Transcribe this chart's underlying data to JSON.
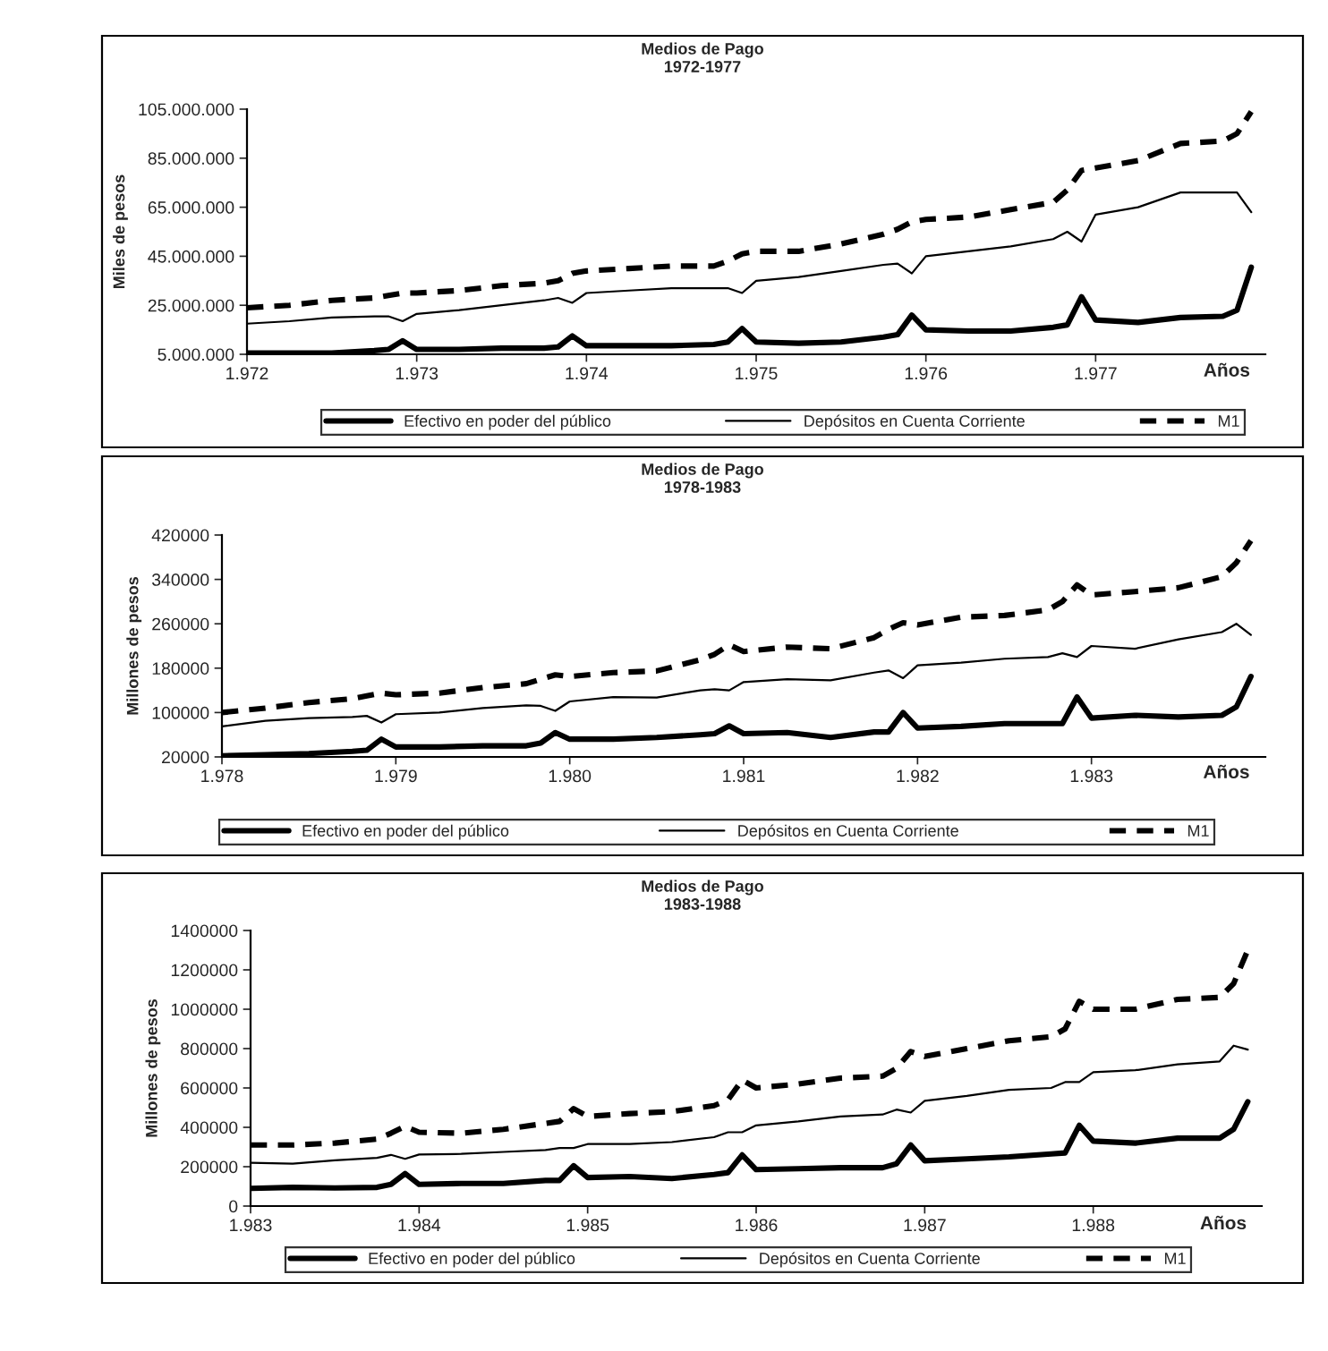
{
  "chart_data": [
    {
      "type": "line",
      "title": "Medios de Pago",
      "subtitle": "1972-1977",
      "xlabel": "Años",
      "ylabel": "Miles de pesos",
      "legend": "bottom",
      "grid": false,
      "x": [
        1972,
        1972.25,
        1972.5,
        1972.75,
        1972.833,
        1972.917,
        1973,
        1973.25,
        1973.5,
        1973.75,
        1973.833,
        1973.917,
        1974,
        1974.25,
        1974.5,
        1974.75,
        1974.833,
        1974.917,
        1975,
        1975.25,
        1975.5,
        1975.75,
        1975.833,
        1975.917,
        1976,
        1976.25,
        1976.5,
        1976.75,
        1976.833,
        1976.917,
        1977,
        1977.25,
        1977.5,
        1977.75,
        1977.833,
        1977.917
      ],
      "xlim": [
        1972,
        1978
      ],
      "xticks": [
        {
          "value": 1972,
          "label": "1.972"
        },
        {
          "value": 1973,
          "label": "1.973"
        },
        {
          "value": 1974,
          "label": "1.974"
        },
        {
          "value": 1975,
          "label": "1.975"
        },
        {
          "value": 1976,
          "label": "1.976"
        },
        {
          "value": 1977,
          "label": "1.977"
        }
      ],
      "ylim": [
        5000000,
        105000000
      ],
      "yticks": [
        {
          "value": 5000000,
          "label": "5.000.000"
        },
        {
          "value": 25000000,
          "label": "25.000.000"
        },
        {
          "value": 45000000,
          "label": "45.000.000"
        },
        {
          "value": 65000000,
          "label": "65.000.000"
        },
        {
          "value": 85000000,
          "label": "85.000.000"
        },
        {
          "value": 105000000,
          "label": "105.000.000"
        }
      ],
      "series": [
        {
          "name": "Efectivo en poder del público",
          "color": "#000000",
          "line_style": "solid",
          "values": [
            5500000,
            5500000,
            5500000,
            6500000,
            7000000,
            10500000,
            7000000,
            7000000,
            7500000,
            7500000,
            8000000,
            12500000,
            8500000,
            8500000,
            8500000,
            9000000,
            10000000,
            15500000,
            10000000,
            9500000,
            10000000,
            12000000,
            13000000,
            21000000,
            15000000,
            14500000,
            14500000,
            16000000,
            17000000,
            28500000,
            19000000,
            18000000,
            20000000,
            20500000,
            23000000,
            40500000
          ]
        },
        {
          "name": "Depósitos en Cuenta Corriente",
          "color": "#000000",
          "line_style": "solid",
          "values": [
            17500000,
            18500000,
            20000000,
            20500000,
            20500000,
            18500000,
            21500000,
            23000000,
            25000000,
            27000000,
            28000000,
            26000000,
            30000000,
            31000000,
            32000000,
            32000000,
            32000000,
            30000000,
            35000000,
            36500000,
            39000000,
            41500000,
            42000000,
            38000000,
            45000000,
            47000000,
            49000000,
            52000000,
            55000000,
            51000000,
            62000000,
            65000000,
            71000000,
            71000000,
            71000000,
            63000000
          ]
        },
        {
          "name": "M1",
          "color": "#000000",
          "line_style": "dashed",
          "values": [
            24000000,
            25000000,
            27000000,
            28000000,
            29000000,
            30000000,
            30000000,
            31000000,
            33000000,
            34000000,
            35000000,
            38000000,
            39000000,
            40000000,
            41000000,
            41000000,
            43000000,
            46000000,
            47000000,
            47000000,
            50000000,
            54000000,
            56000000,
            59000000,
            60000000,
            61000000,
            64000000,
            67000000,
            72000000,
            80000000,
            81000000,
            84000000,
            91000000,
            92000000,
            95000000,
            104000000
          ]
        }
      ]
    },
    {
      "type": "line",
      "title": "Medios de Pago",
      "subtitle": "1978-1983",
      "xlabel": "Años",
      "ylabel": "Millones de pesos",
      "legend": "bottom",
      "grid": false,
      "x": [
        1978,
        1978.25,
        1978.5,
        1978.75,
        1978.833,
        1978.917,
        1979,
        1979.25,
        1979.5,
        1979.75,
        1979.833,
        1979.917,
        1980,
        1980.25,
        1980.5,
        1980.75,
        1980.833,
        1980.917,
        1981,
        1981.25,
        1981.5,
        1981.75,
        1981.833,
        1981.917,
        1982,
        1982.25,
        1982.5,
        1982.75,
        1982.833,
        1982.917,
        1983,
        1983.25,
        1983.5,
        1983.75,
        1983.833,
        1983.917
      ],
      "xlim": [
        1978,
        1984
      ],
      "xticks": [
        {
          "value": 1978,
          "label": "1.978"
        },
        {
          "value": 1979,
          "label": "1.979"
        },
        {
          "value": 1980,
          "label": "1.980"
        },
        {
          "value": 1981,
          "label": "1.981"
        },
        {
          "value": 1982,
          "label": "1.982"
        },
        {
          "value": 1983,
          "label": "1.983"
        }
      ],
      "ylim": [
        20000,
        420000
      ],
      "yticks": [
        20000,
        100000,
        180000,
        260000,
        340000,
        420000
      ],
      "series": [
        {
          "name": "Efectivo en poder del público",
          "color": "#000000",
          "line_style": "solid",
          "values": [
            22000,
            24000,
            26000,
            30000,
            32000,
            52000,
            38000,
            38000,
            40000,
            40000,
            45000,
            64000,
            52000,
            52000,
            55000,
            60000,
            62000,
            76000,
            62000,
            64000,
            55000,
            65000,
            65000,
            100000,
            72000,
            75000,
            80000,
            80000,
            80000,
            128000,
            90000,
            95000,
            92000,
            95000,
            110000,
            165000
          ]
        },
        {
          "name": "Depósitos en Cuenta Corriente",
          "color": "#000000",
          "line_style": "solid",
          "values": [
            75000,
            85000,
            90000,
            92000,
            94000,
            82000,
            97000,
            100000,
            108000,
            113000,
            112000,
            103000,
            120000,
            128000,
            127000,
            140000,
            142000,
            140000,
            155000,
            160000,
            158000,
            172000,
            176000,
            162000,
            185000,
            190000,
            197000,
            200000,
            207000,
            200000,
            220000,
            215000,
            232000,
            245000,
            260000,
            240000
          ]
        },
        {
          "name": "M1",
          "color": "#000000",
          "line_style": "dashed",
          "values": [
            100000,
            108000,
            118000,
            125000,
            130000,
            135000,
            132000,
            135000,
            145000,
            152000,
            160000,
            168000,
            165000,
            172000,
            175000,
            195000,
            205000,
            222000,
            210000,
            218000,
            215000,
            235000,
            250000,
            262000,
            258000,
            272000,
            275000,
            285000,
            300000,
            330000,
            312000,
            318000,
            325000,
            345000,
            370000,
            410000
          ]
        }
      ]
    },
    {
      "type": "line",
      "title": "Medios de Pago",
      "subtitle": "1983-1988",
      "xlabel": "Años",
      "ylabel": "Millones de pesos",
      "legend": "bottom",
      "grid": false,
      "x": [
        1983,
        1983.25,
        1983.5,
        1983.75,
        1983.833,
        1983.917,
        1984,
        1984.25,
        1984.5,
        1984.75,
        1984.833,
        1984.917,
        1985,
        1985.25,
        1985.5,
        1985.75,
        1985.833,
        1985.917,
        1986,
        1986.25,
        1986.5,
        1986.75,
        1986.833,
        1986.917,
        1987,
        1987.25,
        1987.5,
        1987.75,
        1987.833,
        1987.917,
        1988,
        1988.25,
        1988.5,
        1988.75,
        1988.833,
        1988.917
      ],
      "xlim": [
        1983,
        1989
      ],
      "xticks": [
        {
          "value": 1983,
          "label": "1.983"
        },
        {
          "value": 1984,
          "label": "1.984"
        },
        {
          "value": 1985,
          "label": "1.985"
        },
        {
          "value": 1986,
          "label": "1.986"
        },
        {
          "value": 1987,
          "label": "1.987"
        },
        {
          "value": 1988,
          "label": "1.988"
        }
      ],
      "ylim": [
        0,
        1400000
      ],
      "yticks": [
        0,
        200000,
        400000,
        600000,
        800000,
        1000000,
        1200000,
        1400000
      ],
      "series": [
        {
          "name": "Efectivo en poder del público",
          "color": "#000000",
          "line_style": "solid",
          "values": [
            90000,
            95000,
            92000,
            95000,
            110000,
            165000,
            110000,
            115000,
            115000,
            130000,
            130000,
            205000,
            145000,
            150000,
            140000,
            160000,
            170000,
            260000,
            185000,
            190000,
            195000,
            195000,
            215000,
            310000,
            230000,
            240000,
            250000,
            265000,
            270000,
            410000,
            330000,
            320000,
            345000,
            345000,
            390000,
            530000
          ]
        },
        {
          "name": "Depósitos en Cuenta Corriente",
          "color": "#000000",
          "line_style": "solid",
          "values": [
            220000,
            215000,
            232000,
            245000,
            260000,
            240000,
            262000,
            265000,
            275000,
            285000,
            295000,
            295000,
            315000,
            315000,
            325000,
            350000,
            375000,
            375000,
            410000,
            430000,
            455000,
            465000,
            490000,
            475000,
            535000,
            560000,
            590000,
            600000,
            630000,
            630000,
            680000,
            690000,
            720000,
            735000,
            815000,
            795000
          ]
        },
        {
          "name": "M1",
          "color": "#000000",
          "line_style": "dashed",
          "values": [
            310000,
            310000,
            320000,
            340000,
            370000,
            405000,
            375000,
            370000,
            390000,
            420000,
            430000,
            495000,
            455000,
            470000,
            480000,
            510000,
            540000,
            640000,
            600000,
            620000,
            650000,
            660000,
            700000,
            785000,
            760000,
            800000,
            840000,
            860000,
            900000,
            1040000,
            1000000,
            1000000,
            1050000,
            1060000,
            1130000,
            1300000
          ]
        }
      ]
    }
  ]
}
